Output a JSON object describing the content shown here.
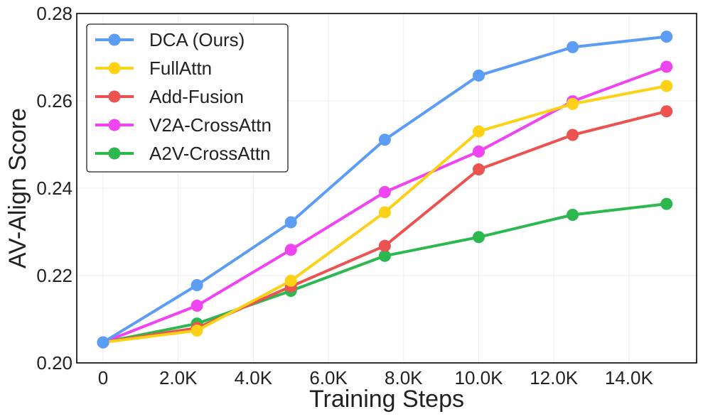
{
  "chart_data": {
    "type": "line",
    "title": "",
    "xlabel": "Training Steps",
    "ylabel": "AV-Align Score",
    "x": [
      0,
      2500,
      5000,
      7500,
      10000,
      12500,
      15000
    ],
    "xlim": [
      -700,
      15800
    ],
    "ylim": [
      0.2,
      0.28
    ],
    "x_ticks": [
      0,
      2000,
      4000,
      6000,
      8000,
      10000,
      12000,
      14000
    ],
    "x_tick_labels": [
      "0",
      "2.0K",
      "4.0K",
      "6.0K",
      "8.0K",
      "10.0K",
      "12.0K",
      "14.0K"
    ],
    "y_ticks": [
      0.2,
      0.22,
      0.24,
      0.26,
      0.28
    ],
    "y_tick_labels": [
      "0.20",
      "0.22",
      "0.24",
      "0.26",
      "0.28"
    ],
    "grid": true,
    "legend_position": "top-left",
    "series": [
      {
        "name": "DCA (Ours)",
        "color": "#5b9cf5",
        "values": [
          0.2047,
          0.2178,
          0.2322,
          0.2511,
          0.2658,
          0.2723,
          0.2747
        ]
      },
      {
        "name": "FullAttn",
        "color": "#fcd116",
        "values": [
          0.2047,
          0.2074,
          0.2188,
          0.2345,
          0.253,
          0.2593,
          0.2634
        ]
      },
      {
        "name": "Add-Fusion",
        "color": "#ec5350",
        "values": [
          0.2047,
          0.208,
          0.2175,
          0.2268,
          0.2443,
          0.2522,
          0.2576
        ]
      },
      {
        "name": "V2A-CrossAttn",
        "color": "#f043f2",
        "values": [
          0.2047,
          0.2131,
          0.2259,
          0.2391,
          0.2484,
          0.2599,
          0.2678
        ]
      },
      {
        "name": "A2V-CrossAttn",
        "color": "#2ab84f",
        "values": [
          0.2047,
          0.209,
          0.2165,
          0.2245,
          0.2288,
          0.2339,
          0.2364
        ]
      }
    ]
  }
}
